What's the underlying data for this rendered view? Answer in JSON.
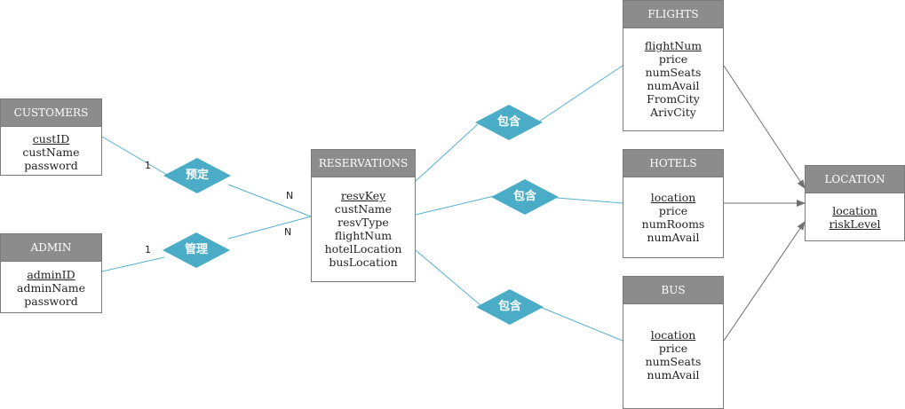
{
  "entities": {
    "customers": {
      "title": "CUSTOMERS",
      "attrs": [
        "custID",
        "custName",
        "password"
      ]
    },
    "admin": {
      "title": "ADMIN",
      "attrs": [
        "adminID",
        "adminName",
        "password"
      ]
    },
    "reservations": {
      "title": "RESERVATIONS",
      "attrs": [
        "resvKey",
        "custName",
        "resvType",
        "flightNum",
        "hotelLocation",
        "busLocation"
      ]
    },
    "flights": {
      "title": "FLIGHTS",
      "attrs": [
        "flightNum",
        "price",
        "numSeats",
        "numAvail",
        "FromCity",
        "ArivCity"
      ]
    },
    "hotels": {
      "title": "HOTELS",
      "attrs": [
        "location",
        "price",
        "numRooms",
        "numAvail"
      ]
    },
    "bus": {
      "title": "BUS",
      "attrs": [
        "location",
        "price",
        "numSeats",
        "numAvail"
      ]
    },
    "location": {
      "title": "LOCATION",
      "attrs": [
        "location",
        "riskLevel"
      ]
    }
  },
  "relationships": {
    "book": "预定",
    "manage": "管理",
    "contain_flights": "包含",
    "contain_hotels": "包含",
    "contain_bus": "包含"
  },
  "cardinalities": {
    "customers_book": "1",
    "reservations_book": "N",
    "admin_manage": "1",
    "reservations_manage": "N"
  },
  "colors": {
    "header": "#8c8c8c",
    "relationship": "#4aacc6",
    "line_rel": "#56b0d0",
    "line_arrow": "#707070"
  }
}
